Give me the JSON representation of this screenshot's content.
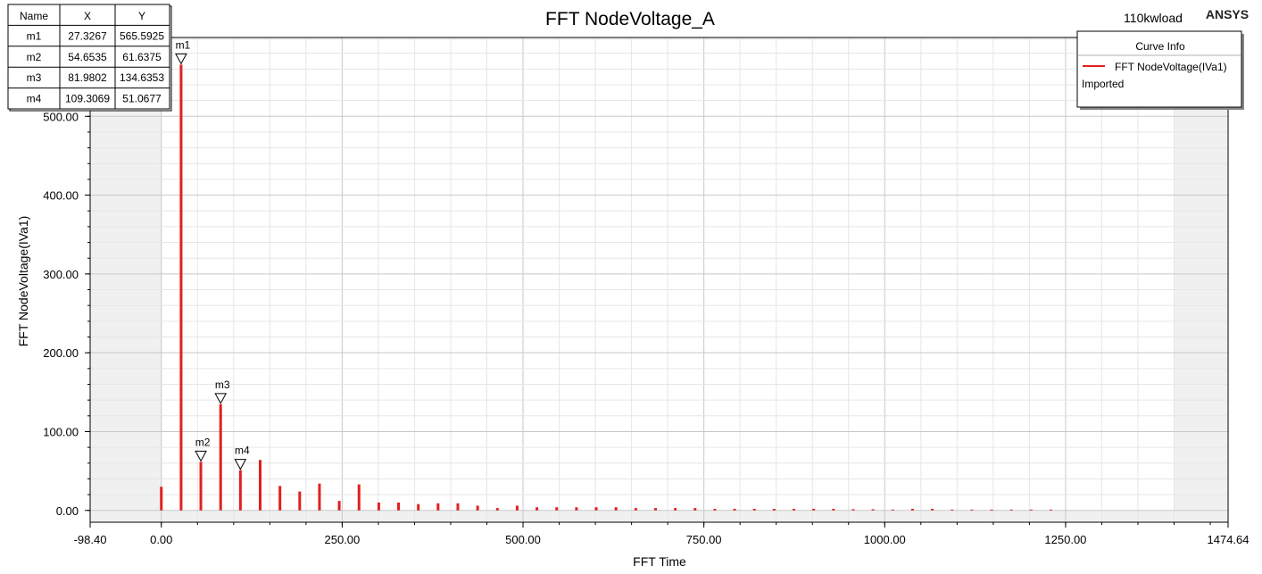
{
  "header": {
    "title": "FFT NodeVoltage_A",
    "design": "110kwload",
    "brand": "ANSYS"
  },
  "marker_table": {
    "columns": [
      "Name",
      "X",
      "Y"
    ],
    "rows": [
      [
        "m1",
        "27.3267",
        "565.5925"
      ],
      [
        "m2",
        "54.6535",
        "61.6375"
      ],
      [
        "m3",
        "81.9802",
        "134.6353"
      ],
      [
        "m4",
        "109.3069",
        "51.0677"
      ]
    ]
  },
  "legend": {
    "title": "Curve Info",
    "entries": [
      {
        "label": "FFT NodeVoltage(IVa1)",
        "sub": "Imported",
        "color": "#e02020"
      }
    ]
  },
  "colors": {
    "series": "#e02020",
    "margin_band": "#f0f0f0",
    "grid_major": "#c8c8c8",
    "grid_minor": "#e6e6e6"
  },
  "chart_data": {
    "type": "bar",
    "title": "FFT NodeVoltage_A",
    "xlabel": "FFT Time",
    "ylabel": "FFT NodeVoltage(IVa1)",
    "xlim": [
      -98.4,
      1474.64
    ],
    "ylim": [
      -15,
      600
    ],
    "xticks": [
      -98.4,
      0.0,
      250.0,
      500.0,
      750.0,
      1000.0,
      1250.0,
      1474.64
    ],
    "xtick_labels": [
      "-98.40",
      "0.00",
      "250.00",
      "500.00",
      "750.00",
      "1000.00",
      "1250.00",
      "1474.64"
    ],
    "yticks": [
      0,
      100,
      200,
      300,
      400,
      500
    ],
    "ytick_labels": [
      "0.00",
      "100.00",
      "200.00",
      "300.00",
      "400.00",
      "500.00"
    ],
    "grid": true,
    "legend_position": "top-right",
    "series": [
      {
        "name": "FFT NodeVoltage(IVa1)",
        "x": [
          0.0,
          27.33,
          54.65,
          81.98,
          109.31,
          136.63,
          163.96,
          191.29,
          218.61,
          245.94,
          273.27,
          300.59,
          327.92,
          355.25,
          382.57,
          409.9,
          437.23,
          464.55,
          491.88,
          519.21,
          546.53,
          573.86,
          601.19,
          628.51,
          655.84,
          683.17,
          710.5,
          737.82,
          765.15,
          792.48,
          819.8,
          847.13,
          874.46,
          901.78,
          929.11,
          956.44,
          983.76,
          1011.09,
          1038.42,
          1065.74,
          1093.07,
          1120.4,
          1147.72,
          1175.05,
          1202.38,
          1229.7
        ],
        "y": [
          30,
          565.59,
          61.64,
          134.64,
          51.07,
          64,
          31,
          24,
          34,
          12,
          33,
          10,
          10,
          8,
          9,
          9,
          6,
          3,
          6,
          4,
          4,
          4,
          4,
          4,
          3,
          3,
          3,
          3,
          2,
          2,
          2,
          2,
          2,
          2,
          2,
          1.5,
          1.5,
          1,
          2,
          2,
          1,
          1,
          1,
          1,
          1,
          1
        ]
      }
    ],
    "markers": [
      {
        "name": "m1",
        "x": 27.3267,
        "y": 565.5925
      },
      {
        "name": "m2",
        "x": 54.6535,
        "y": 61.6375
      },
      {
        "name": "m3",
        "x": 81.9802,
        "y": 134.6353
      },
      {
        "name": "m4",
        "x": 109.3069,
        "y": 51.0677
      }
    ]
  }
}
